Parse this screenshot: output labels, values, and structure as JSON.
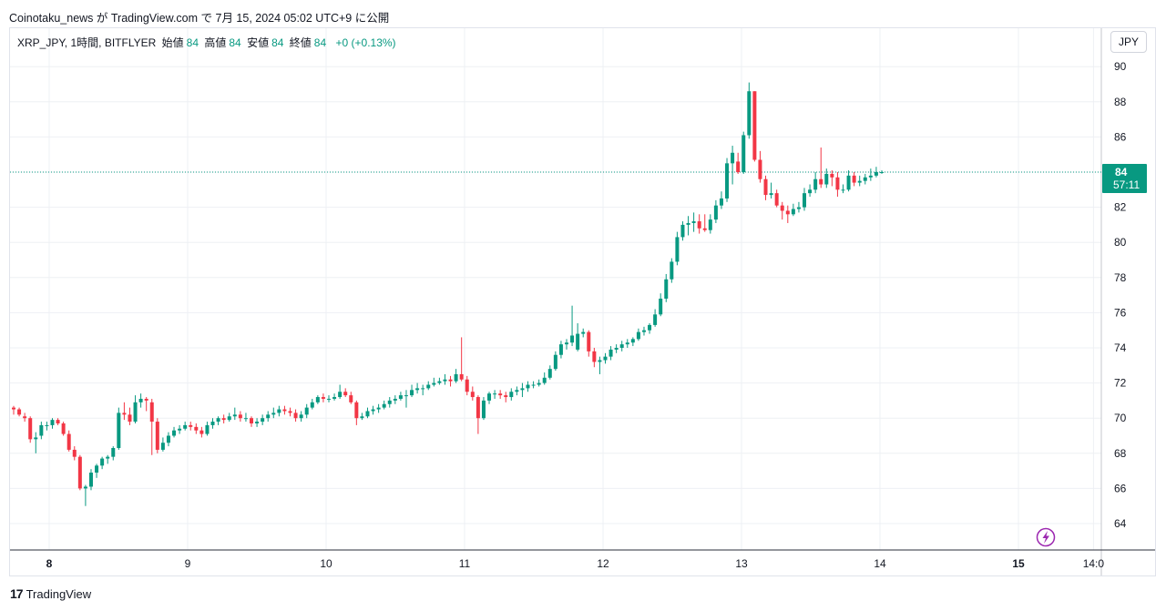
{
  "header": {
    "text": "Coinotaku_news が TradingView.com で 7月 15, 2024 05:02 UTC+9 に公開"
  },
  "legend": {
    "symbol": "XRP_JPY, 1時間, BITFLYER",
    "open_label": "始値",
    "open_value": "84",
    "high_label": "高値",
    "high_value": "84",
    "low_label": "安値",
    "low_value": "84",
    "close_label": "終値",
    "close_value": "84",
    "change": "+0 (+0.13%)"
  },
  "currency_button": "JPY",
  "price_badge": {
    "price": "84",
    "countdown": "57:11"
  },
  "footer": {
    "logo": "17",
    "brand": "TradingView"
  },
  "colors": {
    "up": "#089981",
    "down": "#f23645",
    "grid": "#eef0f4",
    "axis": "#131722",
    "last_price": "#089981",
    "flash": "#9c27b0"
  },
  "icons": {
    "flash": "lightning-icon"
  },
  "chart_data": {
    "type": "candlestick",
    "y_ticks": [
      "64",
      "66",
      "68",
      "70",
      "72",
      "74",
      "76",
      "78",
      "80",
      "82",
      "84",
      "86",
      "88",
      "90"
    ],
    "ylim": [
      62.5,
      91
    ],
    "x_ticks": [
      {
        "label": "8",
        "bold": true,
        "x": 8
      },
      {
        "label": "9",
        "bold": false,
        "x": 9
      },
      {
        "label": "10",
        "bold": false,
        "x": 10
      },
      {
        "label": "11",
        "bold": false,
        "x": 11
      },
      {
        "label": "12",
        "bold": false,
        "x": 12
      },
      {
        "label": "13",
        "bold": false,
        "x": 13
      },
      {
        "label": "14",
        "bold": false,
        "x": 14
      },
      {
        "label": "15",
        "bold": true,
        "x": 15
      },
      {
        "label": "14:0",
        "bold": false,
        "x": 15.542
      }
    ],
    "xlim": [
      7.7,
      15.6
    ],
    "last_price": 84,
    "closes": [
      70.5,
      70.5,
      70.2,
      70.0,
      68.8,
      68.9,
      69.6,
      69.6,
      69.9,
      69.7,
      69.1,
      68.2,
      67.8,
      66.0,
      66.1,
      66.9,
      67.3,
      67.7,
      67.8,
      68.3,
      70.3,
      70.2,
      69.8,
      70.9,
      71.1,
      71.0,
      69.8,
      68.2,
      68.6,
      69.0,
      69.3,
      69.4,
      69.6,
      69.5,
      69.3,
      69.1,
      69.6,
      69.8,
      70.0,
      69.9,
      70.1,
      70.2,
      70.0,
      70.0,
      69.7,
      69.8,
      70.0,
      70.2,
      70.3,
      70.5,
      70.4,
      70.3,
      70.0,
      70.2,
      70.6,
      70.9,
      71.2,
      71.1,
      71.1,
      71.2,
      71.5,
      71.3,
      70.9,
      70.0,
      70.1,
      70.4,
      70.5,
      70.6,
      70.8,
      71.0,
      71.1,
      71.3,
      71.3,
      71.6,
      71.7,
      71.7,
      71.9,
      72.0,
      72.1,
      72.2,
      72.1,
      72.5,
      72.2,
      71.5,
      71.2,
      70.0,
      71.0,
      71.4,
      71.4,
      71.3,
      71.2,
      71.5,
      71.6,
      71.7,
      71.9,
      71.9,
      72.0,
      72.3,
      72.8,
      73.6,
      74.2,
      74.3,
      74.7,
      74.8,
      74.9,
      73.8,
      73.2,
      73.3,
      73.5,
      73.9,
      74.0,
      74.2,
      74.3,
      74.5,
      74.9,
      75.0,
      75.3,
      75.9,
      76.8,
      77.9,
      78.9,
      80.3,
      81.0,
      81.1,
      81.2,
      80.8,
      80.7,
      81.3,
      82.1,
      82.5,
      84.5,
      85.1,
      84.0,
      86.1,
      88.6,
      84.7,
      83.6,
      82.7,
      82.8,
      82.1,
      81.8,
      81.6,
      81.9,
      82.0,
      82.8,
      83.0,
      83.6,
      83.3,
      83.9,
      83.7,
      83.0,
      83.0,
      83.8,
      83.4,
      83.5,
      83.7,
      83.8,
      84.0,
      84.0
    ],
    "candles": [
      {
        "o": 70.6,
        "h": 70.7,
        "l": 70.2,
        "c": 70.5
      },
      {
        "o": 70.5,
        "h": 70.6,
        "l": 70.1,
        "c": 70.2
      },
      {
        "o": 70.1,
        "h": 70.3,
        "l": 69.8,
        "c": 70.0
      },
      {
        "o": 70.0,
        "h": 70.1,
        "l": 68.6,
        "c": 68.8
      },
      {
        "o": 68.8,
        "h": 69.2,
        "l": 68.0,
        "c": 68.9
      },
      {
        "o": 69.0,
        "h": 69.8,
        "l": 68.8,
        "c": 69.6
      },
      {
        "o": 69.6,
        "h": 69.8,
        "l": 69.3,
        "c": 69.6
      },
      {
        "o": 69.6,
        "h": 70.0,
        "l": 69.4,
        "c": 69.9
      },
      {
        "o": 69.9,
        "h": 70.0,
        "l": 69.6,
        "c": 69.7
      },
      {
        "o": 69.7,
        "h": 69.8,
        "l": 69.0,
        "c": 69.1
      },
      {
        "o": 69.1,
        "h": 69.3,
        "l": 68.1,
        "c": 68.2
      },
      {
        "o": 68.2,
        "h": 68.4,
        "l": 67.6,
        "c": 67.8
      },
      {
        "o": 67.8,
        "h": 67.9,
        "l": 65.9,
        "c": 66.0
      },
      {
        "o": 66.0,
        "h": 66.2,
        "l": 65.0,
        "c": 66.1
      },
      {
        "o": 66.1,
        "h": 67.1,
        "l": 65.9,
        "c": 66.9
      },
      {
        "o": 66.9,
        "h": 67.4,
        "l": 66.6,
        "c": 67.3
      },
      {
        "o": 67.3,
        "h": 67.8,
        "l": 67.1,
        "c": 67.7
      },
      {
        "o": 67.7,
        "h": 67.9,
        "l": 67.4,
        "c": 67.8
      },
      {
        "o": 67.8,
        "h": 68.4,
        "l": 67.6,
        "c": 68.3
      },
      {
        "o": 68.3,
        "h": 70.6,
        "l": 68.2,
        "c": 70.3
      },
      {
        "o": 70.3,
        "h": 70.9,
        "l": 69.9,
        "c": 70.2
      },
      {
        "o": 70.2,
        "h": 70.6,
        "l": 69.6,
        "c": 69.8
      },
      {
        "o": 69.8,
        "h": 71.3,
        "l": 69.7,
        "c": 70.9
      },
      {
        "o": 70.9,
        "h": 71.4,
        "l": 70.6,
        "c": 71.1
      },
      {
        "o": 71.1,
        "h": 71.2,
        "l": 70.4,
        "c": 71.0
      },
      {
        "o": 70.9,
        "h": 71.1,
        "l": 67.9,
        "c": 69.8
      },
      {
        "o": 69.8,
        "h": 70.0,
        "l": 68.0,
        "c": 68.2
      },
      {
        "o": 68.2,
        "h": 68.9,
        "l": 68.1,
        "c": 68.6
      },
      {
        "o": 68.6,
        "h": 69.2,
        "l": 68.4,
        "c": 69.0
      },
      {
        "o": 69.0,
        "h": 69.5,
        "l": 68.9,
        "c": 69.3
      },
      {
        "o": 69.3,
        "h": 69.6,
        "l": 69.1,
        "c": 69.4
      },
      {
        "o": 69.4,
        "h": 69.8,
        "l": 69.3,
        "c": 69.6
      },
      {
        "o": 69.6,
        "h": 69.8,
        "l": 69.3,
        "c": 69.5
      },
      {
        "o": 69.5,
        "h": 69.7,
        "l": 69.1,
        "c": 69.3
      },
      {
        "o": 69.3,
        "h": 69.5,
        "l": 68.9,
        "c": 69.1
      },
      {
        "o": 69.1,
        "h": 69.8,
        "l": 69.0,
        "c": 69.6
      },
      {
        "o": 69.6,
        "h": 70.0,
        "l": 69.4,
        "c": 69.8
      },
      {
        "o": 69.8,
        "h": 70.1,
        "l": 69.6,
        "c": 70.0
      },
      {
        "o": 70.0,
        "h": 70.2,
        "l": 69.7,
        "c": 69.9
      },
      {
        "o": 69.9,
        "h": 70.3,
        "l": 69.8,
        "c": 70.1
      },
      {
        "o": 70.1,
        "h": 70.6,
        "l": 69.9,
        "c": 70.2
      },
      {
        "o": 70.2,
        "h": 70.4,
        "l": 69.8,
        "c": 70.0
      },
      {
        "o": 70.0,
        "h": 70.3,
        "l": 69.8,
        "c": 70.0
      },
      {
        "o": 70.0,
        "h": 70.1,
        "l": 69.5,
        "c": 69.7
      },
      {
        "o": 69.7,
        "h": 70.0,
        "l": 69.5,
        "c": 69.8
      },
      {
        "o": 69.8,
        "h": 70.2,
        "l": 69.6,
        "c": 70.0
      },
      {
        "o": 70.0,
        "h": 70.4,
        "l": 69.8,
        "c": 70.2
      },
      {
        "o": 70.2,
        "h": 70.6,
        "l": 70.0,
        "c": 70.3
      },
      {
        "o": 70.3,
        "h": 70.7,
        "l": 70.1,
        "c": 70.5
      },
      {
        "o": 70.5,
        "h": 70.7,
        "l": 70.2,
        "c": 70.4
      },
      {
        "o": 70.4,
        "h": 70.6,
        "l": 70.1,
        "c": 70.3
      },
      {
        "o": 70.3,
        "h": 70.5,
        "l": 69.8,
        "c": 70.0
      },
      {
        "o": 70.0,
        "h": 70.4,
        "l": 69.8,
        "c": 70.2
      },
      {
        "o": 70.2,
        "h": 70.8,
        "l": 70.0,
        "c": 70.6
      },
      {
        "o": 70.6,
        "h": 71.1,
        "l": 70.5,
        "c": 70.9
      },
      {
        "o": 70.9,
        "h": 71.3,
        "l": 70.8,
        "c": 71.2
      },
      {
        "o": 71.2,
        "h": 71.4,
        "l": 70.9,
        "c": 71.1
      },
      {
        "o": 71.1,
        "h": 71.3,
        "l": 70.9,
        "c": 71.1
      },
      {
        "o": 71.1,
        "h": 71.4,
        "l": 71.0,
        "c": 71.2
      },
      {
        "o": 71.2,
        "h": 71.9,
        "l": 71.1,
        "c": 71.5
      },
      {
        "o": 71.5,
        "h": 71.7,
        "l": 71.2,
        "c": 71.3
      },
      {
        "o": 71.3,
        "h": 71.5,
        "l": 70.8,
        "c": 70.9
      },
      {
        "o": 70.9,
        "h": 71.0,
        "l": 69.6,
        "c": 70.0
      },
      {
        "o": 70.0,
        "h": 70.3,
        "l": 69.9,
        "c": 70.1
      },
      {
        "o": 70.1,
        "h": 70.6,
        "l": 70.0,
        "c": 70.4
      },
      {
        "o": 70.4,
        "h": 70.7,
        "l": 70.2,
        "c": 70.5
      },
      {
        "o": 70.5,
        "h": 70.8,
        "l": 70.3,
        "c": 70.6
      },
      {
        "o": 70.6,
        "h": 71.0,
        "l": 70.5,
        "c": 70.8
      },
      {
        "o": 70.8,
        "h": 71.2,
        "l": 70.6,
        "c": 71.0
      },
      {
        "o": 71.0,
        "h": 71.3,
        "l": 70.8,
        "c": 71.1
      },
      {
        "o": 71.1,
        "h": 71.5,
        "l": 71.0,
        "c": 71.3
      },
      {
        "o": 71.3,
        "h": 71.6,
        "l": 70.6,
        "c": 71.3
      },
      {
        "o": 71.3,
        "h": 71.9,
        "l": 71.2,
        "c": 71.6
      },
      {
        "o": 71.6,
        "h": 72.0,
        "l": 71.4,
        "c": 71.7
      },
      {
        "o": 71.7,
        "h": 71.9,
        "l": 71.3,
        "c": 71.7
      },
      {
        "o": 71.7,
        "h": 72.1,
        "l": 71.6,
        "c": 71.9
      },
      {
        "o": 71.9,
        "h": 72.3,
        "l": 71.8,
        "c": 72.0
      },
      {
        "o": 72.0,
        "h": 72.3,
        "l": 71.9,
        "c": 72.1
      },
      {
        "o": 72.1,
        "h": 72.5,
        "l": 71.9,
        "c": 72.2
      },
      {
        "o": 72.2,
        "h": 72.4,
        "l": 71.8,
        "c": 72.1
      },
      {
        "o": 72.1,
        "h": 72.8,
        "l": 72.0,
        "c": 72.5
      },
      {
        "o": 72.5,
        "h": 74.6,
        "l": 72.1,
        "c": 72.2
      },
      {
        "o": 72.2,
        "h": 72.4,
        "l": 71.3,
        "c": 71.5
      },
      {
        "o": 71.5,
        "h": 71.8,
        "l": 71.0,
        "c": 71.2
      },
      {
        "o": 71.2,
        "h": 71.3,
        "l": 69.1,
        "c": 70.0
      },
      {
        "o": 70.0,
        "h": 71.2,
        "l": 69.9,
        "c": 71.0
      },
      {
        "o": 71.0,
        "h": 71.5,
        "l": 70.8,
        "c": 71.4
      },
      {
        "o": 71.4,
        "h": 71.6,
        "l": 71.1,
        "c": 71.4
      },
      {
        "o": 71.4,
        "h": 71.6,
        "l": 71.1,
        "c": 71.3
      },
      {
        "o": 71.3,
        "h": 71.5,
        "l": 70.9,
        "c": 71.2
      },
      {
        "o": 71.2,
        "h": 71.7,
        "l": 71.0,
        "c": 71.5
      },
      {
        "o": 71.5,
        "h": 71.8,
        "l": 71.3,
        "c": 71.6
      },
      {
        "o": 71.6,
        "h": 72.0,
        "l": 71.2,
        "c": 71.7
      },
      {
        "o": 71.7,
        "h": 72.1,
        "l": 71.5,
        "c": 71.9
      },
      {
        "o": 71.9,
        "h": 72.1,
        "l": 71.7,
        "c": 71.9
      },
      {
        "o": 71.9,
        "h": 72.2,
        "l": 71.8,
        "c": 72.0
      },
      {
        "o": 72.0,
        "h": 72.6,
        "l": 71.9,
        "c": 72.3
      },
      {
        "o": 72.3,
        "h": 73.0,
        "l": 72.2,
        "c": 72.8
      },
      {
        "o": 72.8,
        "h": 73.8,
        "l": 72.7,
        "c": 73.6
      },
      {
        "o": 73.6,
        "h": 74.4,
        "l": 73.4,
        "c": 74.2
      },
      {
        "o": 74.2,
        "h": 74.5,
        "l": 73.9,
        "c": 74.3
      },
      {
        "o": 74.3,
        "h": 76.4,
        "l": 74.1,
        "c": 74.7
      },
      {
        "o": 73.9,
        "h": 75.4,
        "l": 73.8,
        "c": 74.8
      },
      {
        "o": 74.8,
        "h": 75.1,
        "l": 74.6,
        "c": 74.9
      },
      {
        "o": 74.9,
        "h": 75.0,
        "l": 73.5,
        "c": 73.8
      },
      {
        "o": 73.8,
        "h": 74.0,
        "l": 72.9,
        "c": 73.2
      },
      {
        "o": 73.2,
        "h": 73.5,
        "l": 72.5,
        "c": 73.3
      },
      {
        "o": 73.3,
        "h": 73.7,
        "l": 73.1,
        "c": 73.5
      },
      {
        "o": 73.5,
        "h": 74.1,
        "l": 73.3,
        "c": 73.9
      },
      {
        "o": 73.9,
        "h": 74.2,
        "l": 73.7,
        "c": 74.0
      },
      {
        "o": 74.0,
        "h": 74.4,
        "l": 73.8,
        "c": 74.2
      },
      {
        "o": 74.2,
        "h": 74.5,
        "l": 74.0,
        "c": 74.3
      },
      {
        "o": 74.3,
        "h": 74.6,
        "l": 74.1,
        "c": 74.5
      },
      {
        "o": 74.5,
        "h": 75.1,
        "l": 74.4,
        "c": 74.9
      },
      {
        "o": 74.9,
        "h": 75.2,
        "l": 74.7,
        "c": 75.0
      },
      {
        "o": 75.0,
        "h": 75.4,
        "l": 74.8,
        "c": 75.3
      },
      {
        "o": 75.3,
        "h": 76.2,
        "l": 75.2,
        "c": 75.9
      },
      {
        "o": 75.9,
        "h": 77.1,
        "l": 75.8,
        "c": 76.8
      },
      {
        "o": 76.8,
        "h": 78.2,
        "l": 76.6,
        "c": 77.9
      },
      {
        "o": 77.9,
        "h": 79.1,
        "l": 77.7,
        "c": 78.9
      },
      {
        "o": 78.9,
        "h": 80.6,
        "l": 78.7,
        "c": 80.3
      },
      {
        "o": 80.3,
        "h": 81.2,
        "l": 80.1,
        "c": 81.0
      },
      {
        "o": 81.0,
        "h": 81.5,
        "l": 80.4,
        "c": 81.1
      },
      {
        "o": 81.1,
        "h": 81.7,
        "l": 80.6,
        "c": 81.2
      },
      {
        "o": 81.2,
        "h": 81.6,
        "l": 80.5,
        "c": 80.8
      },
      {
        "o": 80.8,
        "h": 81.6,
        "l": 80.6,
        "c": 80.7
      },
      {
        "o": 80.7,
        "h": 81.6,
        "l": 80.5,
        "c": 81.3
      },
      {
        "o": 81.3,
        "h": 82.4,
        "l": 81.1,
        "c": 82.1
      },
      {
        "o": 82.1,
        "h": 82.9,
        "l": 81.9,
        "c": 82.5
      },
      {
        "o": 82.5,
        "h": 84.8,
        "l": 82.3,
        "c": 84.5
      },
      {
        "o": 84.5,
        "h": 85.5,
        "l": 83.3,
        "c": 85.1
      },
      {
        "o": 84.6,
        "h": 85.1,
        "l": 83.9,
        "c": 84.0
      },
      {
        "o": 84.0,
        "h": 86.3,
        "l": 83.9,
        "c": 86.1
      },
      {
        "o": 86.1,
        "h": 89.1,
        "l": 85.9,
        "c": 88.6
      },
      {
        "o": 88.6,
        "h": 88.6,
        "l": 84.6,
        "c": 84.7
      },
      {
        "o": 84.7,
        "h": 85.2,
        "l": 83.4,
        "c": 83.6
      },
      {
        "o": 83.6,
        "h": 83.8,
        "l": 82.4,
        "c": 82.7
      },
      {
        "o": 82.7,
        "h": 83.4,
        "l": 82.5,
        "c": 82.8
      },
      {
        "o": 82.8,
        "h": 83.0,
        "l": 82.0,
        "c": 82.1
      },
      {
        "o": 82.1,
        "h": 82.3,
        "l": 81.3,
        "c": 81.8
      },
      {
        "o": 81.8,
        "h": 82.1,
        "l": 81.1,
        "c": 81.6
      },
      {
        "o": 81.6,
        "h": 82.2,
        "l": 81.5,
        "c": 81.9
      },
      {
        "o": 81.9,
        "h": 82.3,
        "l": 81.7,
        "c": 82.0
      },
      {
        "o": 82.0,
        "h": 83.1,
        "l": 81.8,
        "c": 82.8
      },
      {
        "o": 82.8,
        "h": 83.3,
        "l": 82.6,
        "c": 83.0
      },
      {
        "o": 83.0,
        "h": 84.0,
        "l": 82.8,
        "c": 83.6
      },
      {
        "o": 83.6,
        "h": 85.4,
        "l": 83.1,
        "c": 83.3
      },
      {
        "o": 83.3,
        "h": 84.2,
        "l": 83.1,
        "c": 83.9
      },
      {
        "o": 83.9,
        "h": 84.1,
        "l": 83.2,
        "c": 83.7
      },
      {
        "o": 83.7,
        "h": 84.0,
        "l": 82.6,
        "c": 83.0
      },
      {
        "o": 83.0,
        "h": 83.3,
        "l": 82.8,
        "c": 83.0
      },
      {
        "o": 83.0,
        "h": 84.1,
        "l": 82.9,
        "c": 83.8
      },
      {
        "o": 83.8,
        "h": 84.0,
        "l": 83.2,
        "c": 83.4
      },
      {
        "o": 83.4,
        "h": 83.8,
        "l": 83.2,
        "c": 83.5
      },
      {
        "o": 83.5,
        "h": 83.9,
        "l": 83.3,
        "c": 83.7
      },
      {
        "o": 83.7,
        "h": 84.2,
        "l": 83.5,
        "c": 83.8
      },
      {
        "o": 83.8,
        "h": 84.3,
        "l": 83.7,
        "c": 84.0
      },
      {
        "o": 84.0,
        "h": 84.1,
        "l": 83.9,
        "c": 84.0
      }
    ]
  }
}
